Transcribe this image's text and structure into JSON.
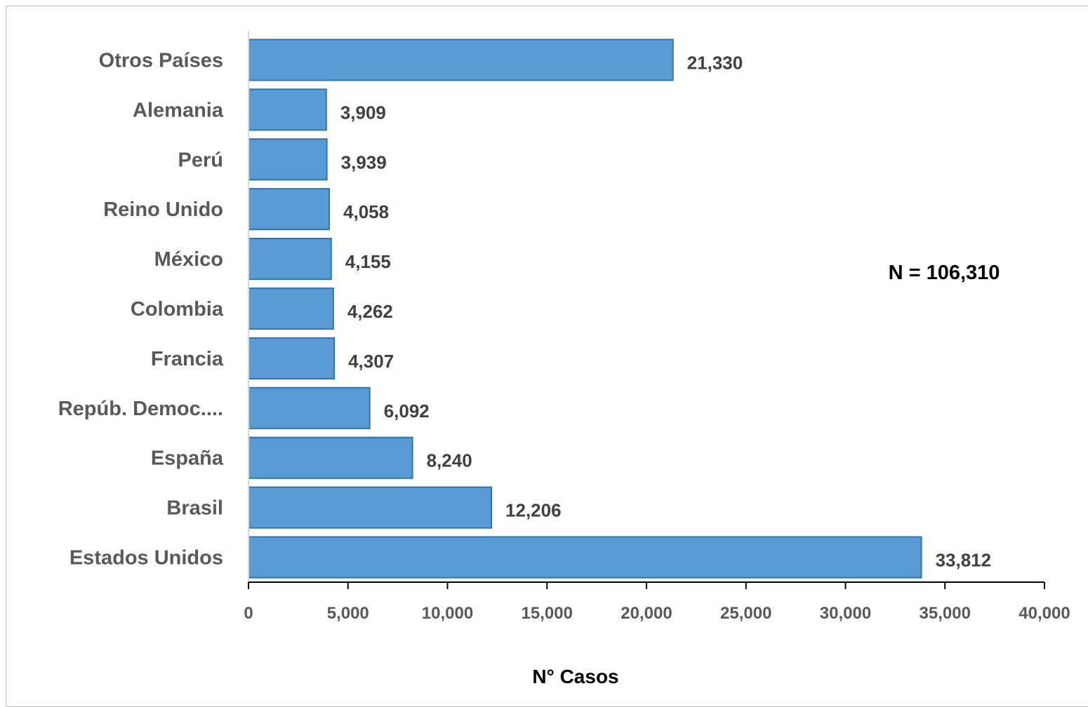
{
  "chart_data": {
    "type": "bar",
    "orientation": "horizontal",
    "categories": [
      "Estados Unidos",
      "Brasil",
      "España",
      "Repúb. Democ....",
      "Francia",
      "Colombia",
      "México",
      "Reino Unido",
      "Perú",
      "Alemania",
      "Otros Países"
    ],
    "values": [
      33812,
      12206,
      8240,
      6092,
      4307,
      4262,
      4155,
      4058,
      3939,
      3909,
      21330
    ],
    "value_labels": [
      "33,812",
      "12,206",
      "8,240",
      "6,092",
      "4,307",
      "4,262",
      "4,155",
      "4,058",
      "3,939",
      "3,909",
      "21,330"
    ],
    "xlabel": "N° Casos",
    "ylabel": "",
    "xlim": [
      0,
      40000
    ],
    "xticks": [
      0,
      5000,
      10000,
      15000,
      20000,
      25000,
      30000,
      35000,
      40000
    ],
    "xtick_labels": [
      "0",
      "5,000",
      "10,000",
      "15,000",
      "20,000",
      "25,000",
      "30,000",
      "35,000",
      "40,000"
    ],
    "annotation": "N = 106,310",
    "grid": false,
    "bar_color": "#5b9bd5",
    "bar_edge_color": "#2e75b6"
  }
}
